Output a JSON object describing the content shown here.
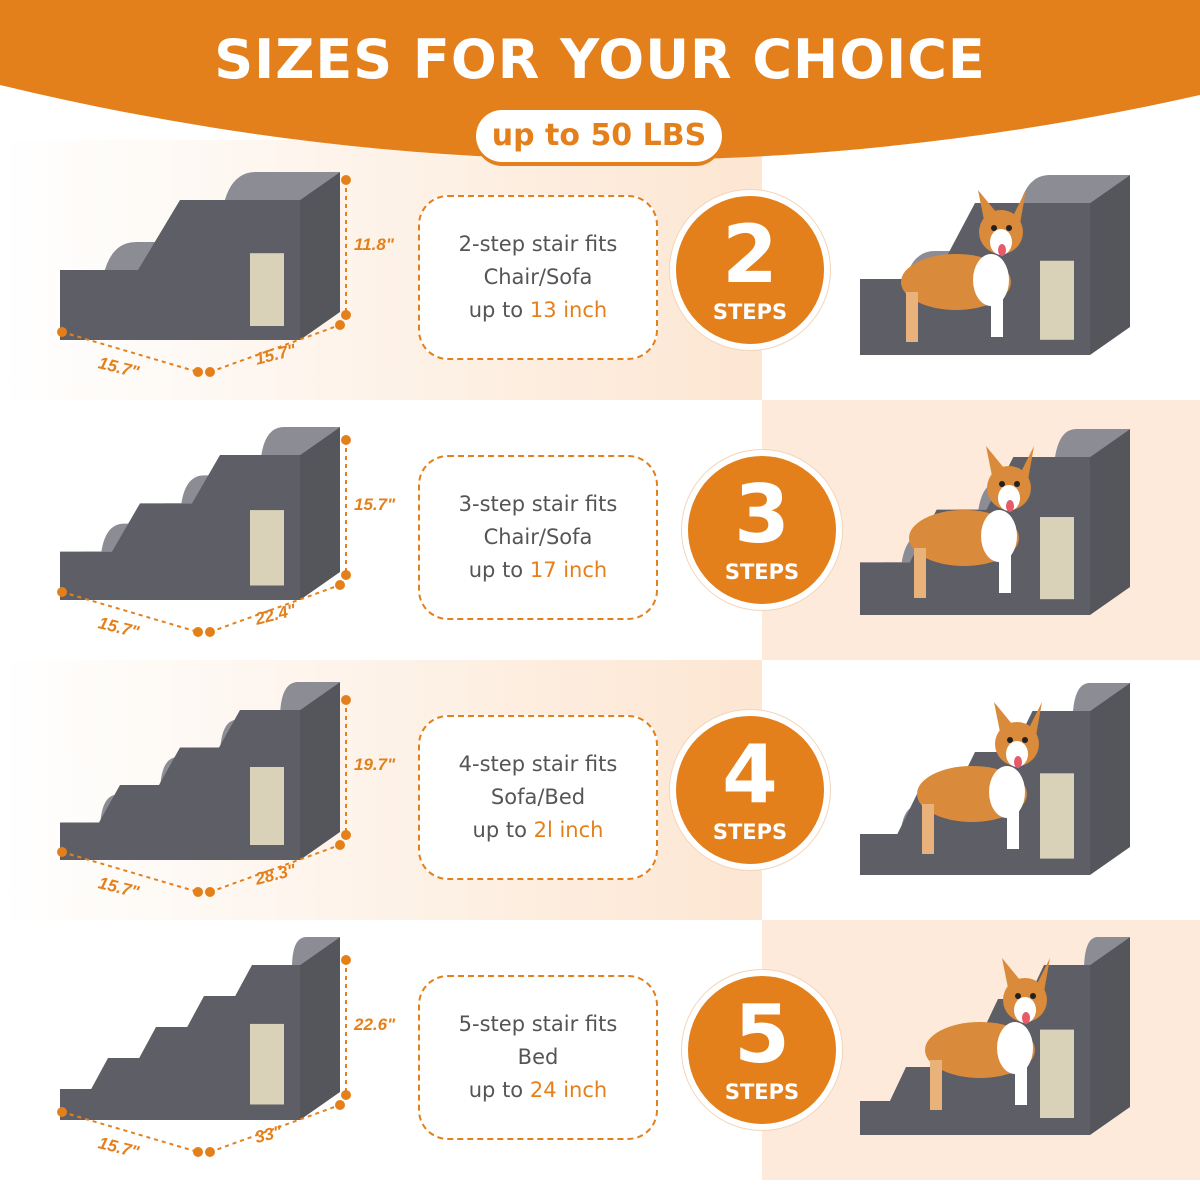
{
  "header": {
    "title": "SIZES FOR YOUR CHOICE",
    "badge": "up to 50 LBS"
  },
  "colors": {
    "accent": "#e4801c",
    "peach": "#fdeadb",
    "stair_top": "#8c8c95",
    "stair_side": "#5e5e66",
    "scratch_pad": "#d9d2b8"
  },
  "rows": [
    {
      "steps": 2,
      "line1": "2-step stair fits",
      "line2": "Chair/Sofa",
      "line3_prefix": "up to ",
      "line3_value": "13 inch",
      "number": "2",
      "steps_label": "STEPS",
      "height": "11.8\"",
      "depth": "15.7\"",
      "length": "15.7\""
    },
    {
      "steps": 3,
      "line1": "3-step stair fits",
      "line2": "Chair/Sofa",
      "line3_prefix": "up to ",
      "line3_value": "17 inch",
      "number": "3",
      "steps_label": "STEPS",
      "height": "15.7\"",
      "depth": "15.7\"",
      "length": "22.4\""
    },
    {
      "steps": 4,
      "line1": "4-step stair fits",
      "line2": "Sofa/Bed",
      "line3_prefix": "up to ",
      "line3_value": "2l inch",
      "number": "4",
      "steps_label": "STEPS",
      "height": "19.7\"",
      "depth": "15.7\"",
      "length": "28.3\""
    },
    {
      "steps": 5,
      "line1": "5-step stair fits",
      "line2": "Bed",
      "line3_prefix": "up to ",
      "line3_value": "24 inch",
      "number": "5",
      "steps_label": "STEPS",
      "height": "22.6\"",
      "depth": "15.7\"",
      "length": "33\""
    }
  ]
}
